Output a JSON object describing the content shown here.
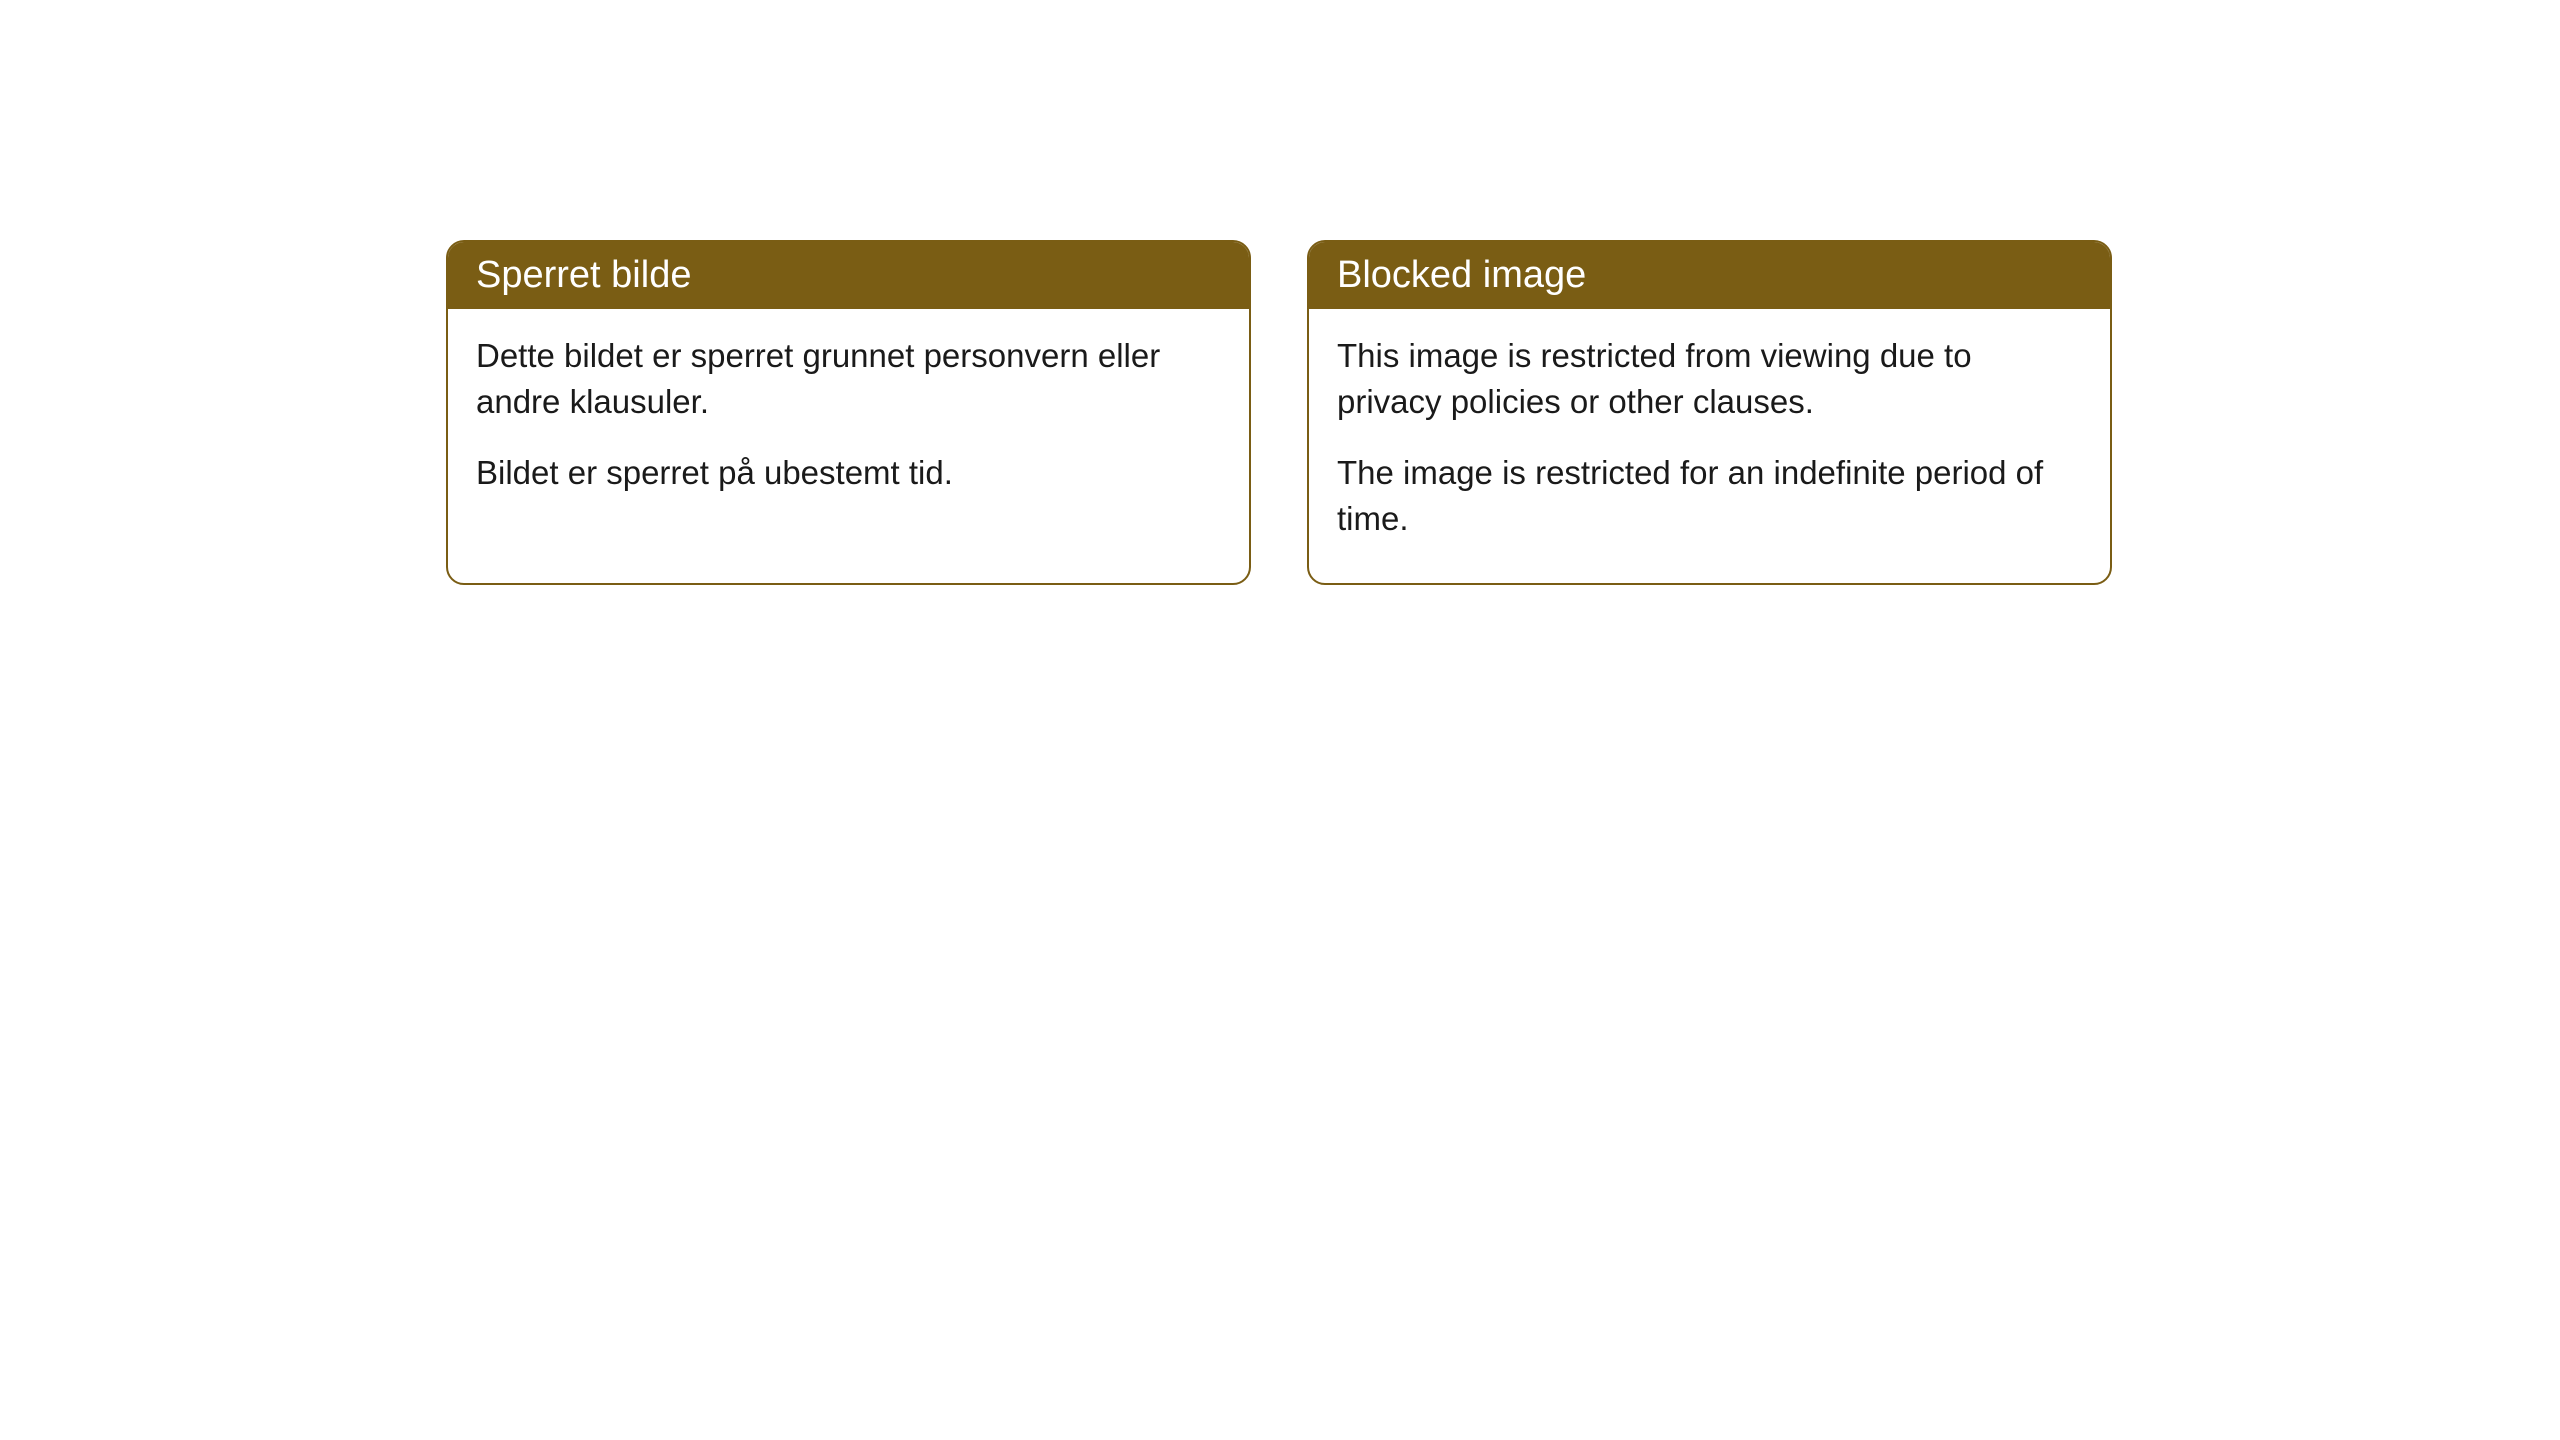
{
  "cards": [
    {
      "title": "Sperret bilde",
      "paragraph1": "Dette bildet er sperret grunnet personvern eller andre klausuler.",
      "paragraph2": "Bildet er sperret på ubestemt tid."
    },
    {
      "title": "Blocked image",
      "paragraph1": "This image is restricted from viewing due to privacy policies or other clauses.",
      "paragraph2": "The image is restricted for an indefinite period of time."
    }
  ],
  "styling": {
    "header_bg_color": "#7a5d14",
    "header_text_color": "#ffffff",
    "border_color": "#7a5d14",
    "body_bg_color": "#ffffff",
    "body_text_color": "#1a1a1a",
    "border_radius": 18,
    "header_fontsize": 38,
    "body_fontsize": 33
  }
}
